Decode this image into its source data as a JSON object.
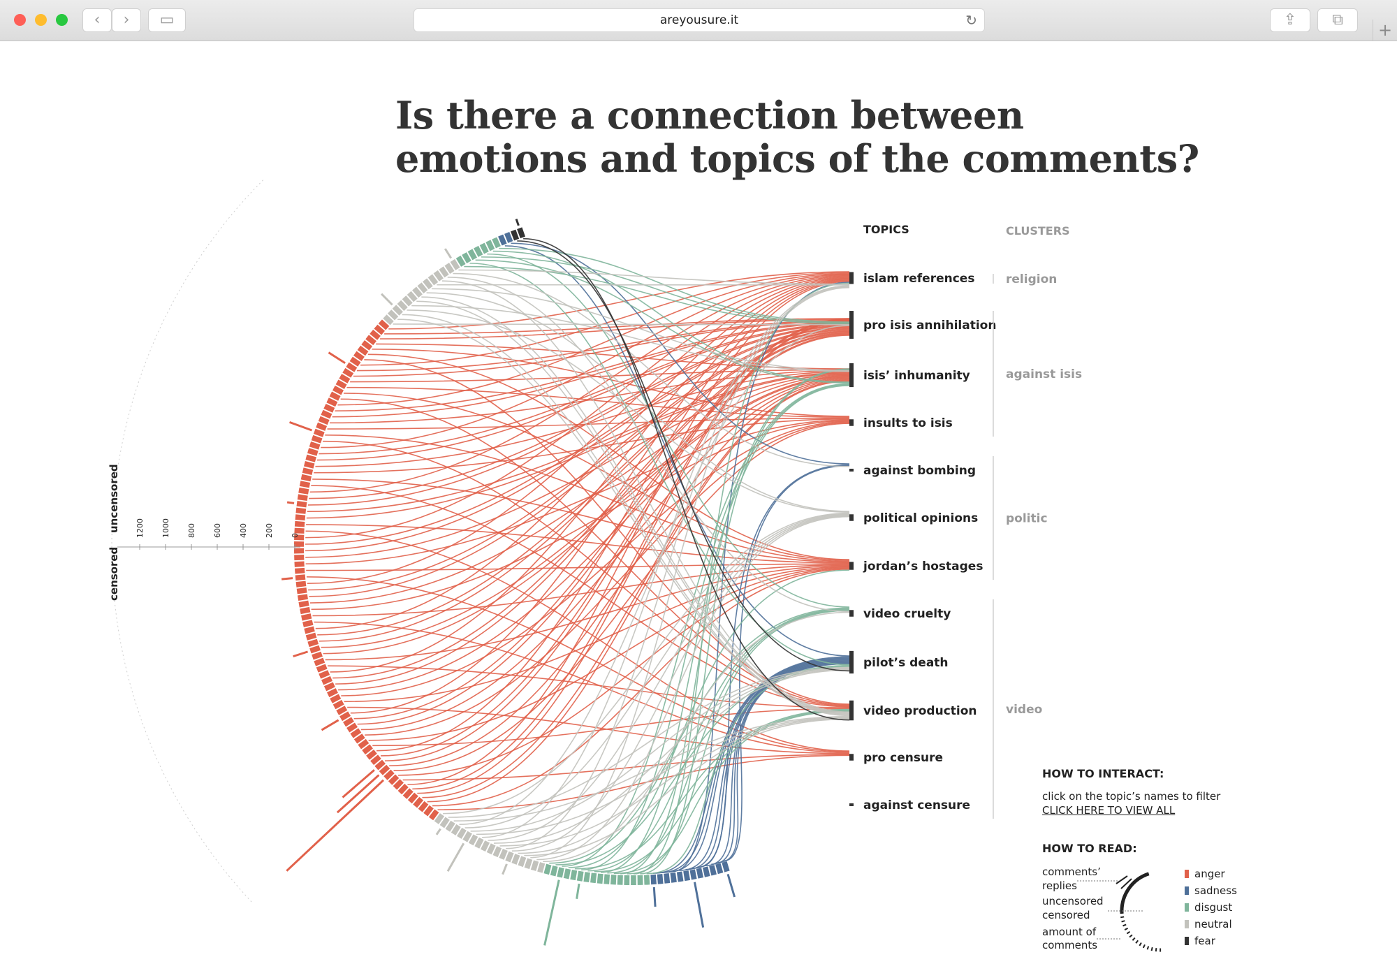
{
  "browser": {
    "url": "areyousure.it",
    "buttons": {
      "back": "‹",
      "forward": "›",
      "sidebar": "▭",
      "reload": "↻",
      "share": "⇪",
      "tabs": "⧉",
      "new_tab": "+"
    },
    "window_colors": {
      "close": "#fe5f57",
      "minimize": "#febc2e",
      "zoom": "#28c840"
    }
  },
  "page": {
    "title_line1": "Is there a connection between",
    "title_line2": "emotions and topics of the comments?"
  },
  "chart_data": {
    "type": "chord-flow",
    "topics_header": "TOPICS",
    "clusters_header": "CLUSTERS",
    "emotions": [
      {
        "name": "anger",
        "color": "#e1614a"
      },
      {
        "name": "sadness",
        "color": "#4f7099"
      },
      {
        "name": "disgust",
        "color": "#7fb59b"
      },
      {
        "name": "neutral",
        "color": "#c2c2bc"
      },
      {
        "name": "fear",
        "color": "#333333"
      }
    ],
    "topics": [
      {
        "name": "islam references",
        "cluster": "religion",
        "shares": {
          "anger": 4,
          "neutral": 3,
          "sadness": 1,
          "disgust": 1
        }
      },
      {
        "name": "pro isis annihilation",
        "cluster": "against isis",
        "shares": {
          "anger": 16,
          "neutral": 3,
          "disgust": 2
        }
      },
      {
        "name": "isis’ inhumanity",
        "cluster": "against isis",
        "shares": {
          "anger": 9,
          "disgust": 7,
          "neutral": 2
        }
      },
      {
        "name": "insults to isis",
        "cluster": "against isis",
        "shares": {
          "anger": 5
        }
      },
      {
        "name": "against bombing",
        "cluster": "politic",
        "shares": {
          "neutral": 1,
          "sadness": 1
        }
      },
      {
        "name": "political opinions",
        "cluster": "politic",
        "shares": {
          "neutral": 5
        }
      },
      {
        "name": "jordan’s hostages",
        "cluster": "politic",
        "shares": {
          "anger": 5,
          "disgust": 1
        }
      },
      {
        "name": "video cruelty",
        "cluster": "video",
        "shares": {
          "disgust": 4,
          "neutral": 1
        }
      },
      {
        "name": "pilot’s death",
        "cluster": "video",
        "shares": {
          "neutral": 6,
          "disgust": 3,
          "sadness": 7,
          "fear": 1
        }
      },
      {
        "name": "video production",
        "cluster": "video",
        "shares": {
          "anger": 4,
          "neutral": 8,
          "disgust": 2,
          "fear": 1
        }
      },
      {
        "name": "pro censure",
        "cluster": "video",
        "shares": {
          "anger": 5
        }
      },
      {
        "name": "against censure",
        "cluster": "video",
        "shares": {
          "anger": 1
        }
      }
    ],
    "clusters": [
      "religion",
      "against isis",
      "politic",
      "video"
    ],
    "arc_segments": [
      {
        "emotion": "fear",
        "count": 2
      },
      {
        "emotion": "sadness",
        "count": 2
      },
      {
        "emotion": "disgust",
        "count": 7
      },
      {
        "emotion": "neutral",
        "count": 14
      },
      {
        "emotion": "anger",
        "count": 84
      },
      {
        "emotion": "neutral",
        "count": 18
      },
      {
        "emotion": "disgust",
        "count": 16
      },
      {
        "emotion": "sadness",
        "count": 12
      }
    ],
    "axis": {
      "uncensored_label": "uncensored",
      "censored_label": "censored",
      "ticks": [
        1200,
        1000,
        800,
        600,
        400,
        200,
        0
      ]
    }
  },
  "instructions": {
    "interact_title": "HOW TO INTERACT:",
    "interact_text": "click on the topic’s names to filter",
    "view_all_link": "CLICK HERE TO VIEW ALL",
    "read_title": "HOW TO READ:",
    "read_replies": [
      "comments’",
      "replies"
    ],
    "read_uncensored": "uncensored",
    "read_censored": "censored",
    "read_amount": [
      "amount of",
      "comments"
    ]
  }
}
